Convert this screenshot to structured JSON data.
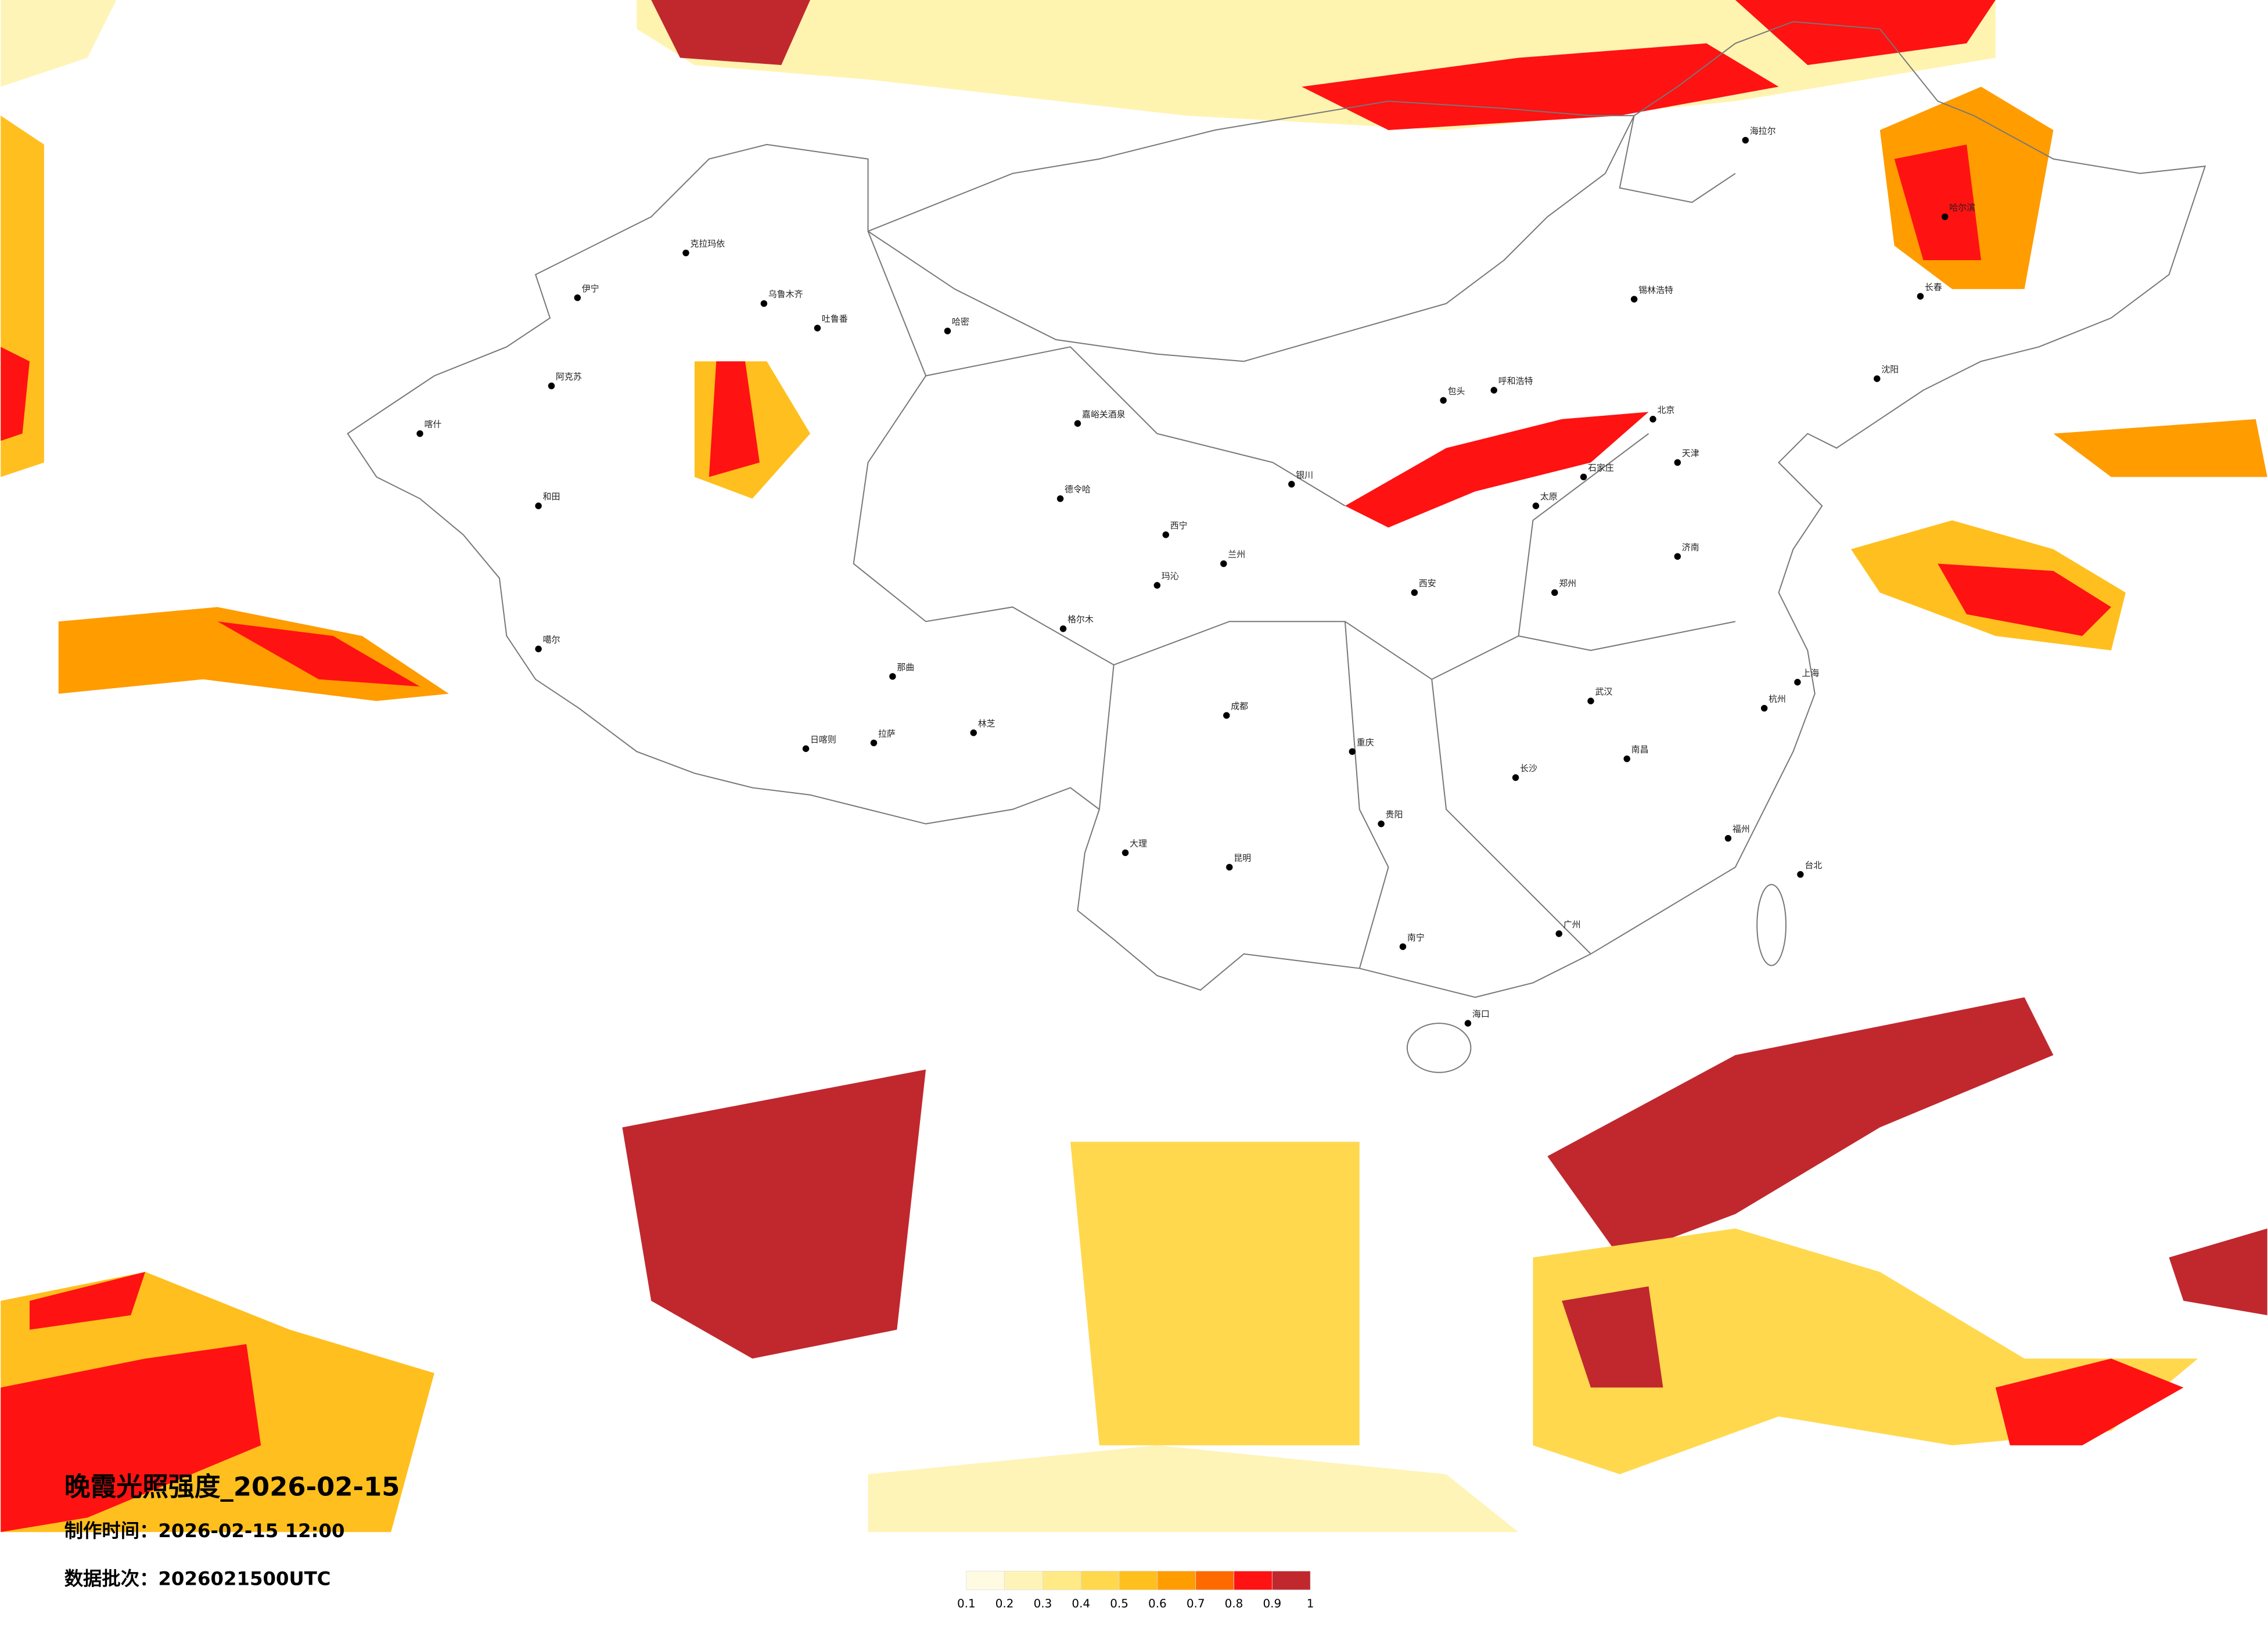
{
  "header": {
    "title": "晚霞光照强度_2026-02-15",
    "production_time": "制作时间：2026-02-15 12:00",
    "data_batch": "数据批次：2026021500UTC"
  },
  "legend": {
    "ticks": [
      0.1,
      0.2,
      0.3,
      0.4,
      0.5,
      0.6,
      0.7,
      0.8,
      0.9,
      1
    ],
    "colors": [
      "#fffbe2",
      "#fff4b8",
      "#ffea85",
      "#ffd84e",
      "#ffbf1e",
      "#ff9c00",
      "#ff6a00",
      "#ff1212",
      "#c0282e"
    ]
  },
  "cities": [
    "克拉玛依",
    "伊宁",
    "阿克苏",
    "喀什",
    "和田",
    "乌鲁木齐",
    "吐鲁番",
    "哈密",
    "嘉峪关酒泉",
    "德令哈",
    "格尔木",
    "那曲",
    "拉萨",
    "日喀则",
    "林芝",
    "噶尔",
    "玛沁",
    "西宁",
    "兰州",
    "银川",
    "呼和浩特",
    "包头",
    "太原",
    "北京",
    "天津",
    "石家庄",
    "济南",
    "郑州",
    "西安",
    "成都",
    "重庆",
    "昆明",
    "贵阳",
    "南宁",
    "长沙",
    "武汉",
    "南昌",
    "福州",
    "广州",
    "海口",
    "台北",
    "上海",
    "杭州",
    "哈尔滨",
    "长春",
    "沈阳",
    "海拉尔",
    "锡林浩特",
    "大理"
  ]
}
